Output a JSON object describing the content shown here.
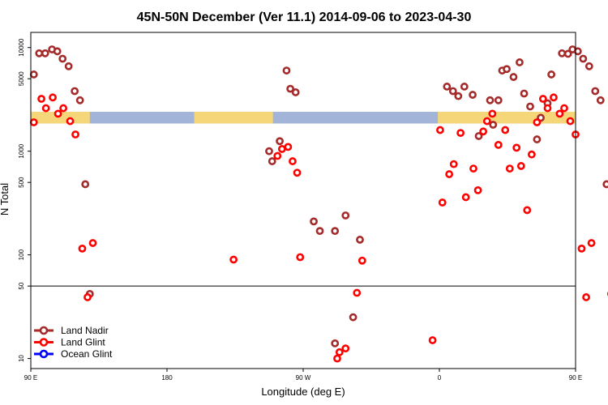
{
  "chart_data": {
    "type": "scatter",
    "title": "45N-50N December (Ver 11.1)   2014-09-06 to 2023-04-30",
    "xlabel": "Longitude (deg E)",
    "ylabel": "N Total",
    "x_axis": {
      "range": [
        90,
        450
      ],
      "ticks": [
        {
          "value": 90,
          "label": "90 E"
        },
        {
          "value": 180,
          "label": "180"
        },
        {
          "value": 270,
          "label": "90 W"
        },
        {
          "value": 360,
          "label": "0"
        },
        {
          "value": 450,
          "label": "90 E"
        }
      ]
    },
    "y_axis": {
      "scale": "log",
      "range": [
        8,
        14000
      ],
      "ticks": [
        {
          "value": 10,
          "label": "10"
        },
        {
          "value": 50,
          "label": "50"
        },
        {
          "value": 100,
          "label": "100"
        },
        {
          "value": 500,
          "label": "500"
        },
        {
          "value": 1000,
          "label": "1000"
        },
        {
          "value": 5000,
          "label": "5000"
        },
        {
          "value": 10000,
          "label": "10000"
        }
      ],
      "reference_line": 50
    },
    "grid": false,
    "legend_position": "bottom-left",
    "colors": {
      "land_nadir": "#a52a2a",
      "land_glint": "#ff0000",
      "ocean_glint": "#0000ff",
      "band_land": "#f5d77a",
      "band_ocean": "#a2b5d8"
    },
    "surface_band": {
      "y_range": [
        1850,
        2400
      ],
      "land_segments": [
        [
          90,
          129
        ],
        [
          198,
          250
        ],
        [
          359,
          456
        ]
      ]
    },
    "series": [
      {
        "name": "Land Nadir",
        "color": "#a52a2a",
        "points": [
          [
            92,
            5500
          ],
          [
            95.5,
            8800
          ],
          [
            99.5,
            8800
          ],
          [
            104,
            9600
          ],
          [
            107.5,
            9200
          ],
          [
            111,
            7800
          ],
          [
            115,
            6600
          ],
          [
            119,
            3800
          ],
          [
            122.5,
            3100
          ],
          [
            126,
            480
          ],
          [
            129,
            42
          ],
          [
            247.5,
            1000
          ],
          [
            249.5,
            800
          ],
          [
            254.5,
            1250
          ],
          [
            259,
            6000
          ],
          [
            261.5,
            4000
          ],
          [
            265,
            3700
          ],
          [
            277,
            210
          ],
          [
            281,
            170
          ],
          [
            291,
            170
          ],
          [
            298,
            240
          ],
          [
            303,
            25
          ],
          [
            307.5,
            140
          ],
          [
            291,
            14
          ],
          [
            365,
            4200
          ],
          [
            369,
            3800
          ],
          [
            372.5,
            3400
          ],
          [
            376.5,
            4200
          ],
          [
            382,
            3500
          ],
          [
            386,
            1400
          ],
          [
            393.5,
            3100
          ],
          [
            395.5,
            1800
          ],
          [
            399,
            3100
          ],
          [
            401.5,
            6000
          ],
          [
            404.5,
            6200
          ],
          [
            409,
            5200
          ],
          [
            413,
            7200
          ],
          [
            416,
            3600
          ],
          [
            420,
            2700
          ],
          [
            424.5,
            1300
          ],
          [
            427,
            2100
          ],
          [
            431.5,
            2900
          ],
          [
            434,
            5500
          ],
          [
            441,
            8800
          ],
          [
            445,
            8700
          ],
          [
            448,
            9600
          ],
          [
            451.5,
            9200
          ],
          [
            455,
            7800
          ],
          [
            459,
            6600
          ],
          [
            463,
            3800
          ],
          [
            466.5,
            3100
          ],
          [
            470.5,
            480
          ],
          [
            473.5,
            42
          ]
        ]
      },
      {
        "name": "Land Glint",
        "color": "#ff0000",
        "points": [
          [
            92,
            1900
          ],
          [
            97,
            3200
          ],
          [
            100,
            2600
          ],
          [
            104.5,
            3300
          ],
          [
            108,
            2300
          ],
          [
            111.5,
            2600
          ],
          [
            116,
            1950
          ],
          [
            119.5,
            1450
          ],
          [
            124,
            115
          ],
          [
            127.5,
            39
          ],
          [
            131,
            130
          ],
          [
            224,
            90
          ],
          [
            253,
            900
          ],
          [
            256,
            1050
          ],
          [
            260,
            1100
          ],
          [
            263,
            800
          ],
          [
            266,
            620
          ],
          [
            268,
            95
          ],
          [
            298,
            12.5
          ],
          [
            294,
            11.5
          ],
          [
            305.5,
            43
          ],
          [
            309,
            88
          ],
          [
            292.5,
            10
          ],
          [
            355.5,
            15
          ],
          [
            360.5,
            1600
          ],
          [
            362,
            320
          ],
          [
            366.5,
            600
          ],
          [
            369.5,
            750
          ],
          [
            374,
            1500
          ],
          [
            377.5,
            360
          ],
          [
            382.5,
            680
          ],
          [
            385.5,
            420
          ],
          [
            389,
            1550
          ],
          [
            391.5,
            1950
          ],
          [
            395,
            2300
          ],
          [
            399,
            1150
          ],
          [
            403.5,
            1600
          ],
          [
            406.5,
            680
          ],
          [
            411,
            1080
          ],
          [
            414,
            720
          ],
          [
            418,
            270
          ],
          [
            421,
            930
          ],
          [
            424.5,
            1900
          ],
          [
            428.5,
            3200
          ],
          [
            431.5,
            2600
          ],
          [
            435.5,
            3300
          ],
          [
            439.5,
            2300
          ],
          [
            442.5,
            2600
          ],
          [
            446.5,
            1950
          ],
          [
            450,
            1450
          ],
          [
            454,
            115
          ],
          [
            457,
            39
          ],
          [
            460.5,
            130
          ]
        ]
      },
      {
        "name": "Ocean Glint",
        "color": "#0000ff",
        "points": []
      }
    ]
  }
}
